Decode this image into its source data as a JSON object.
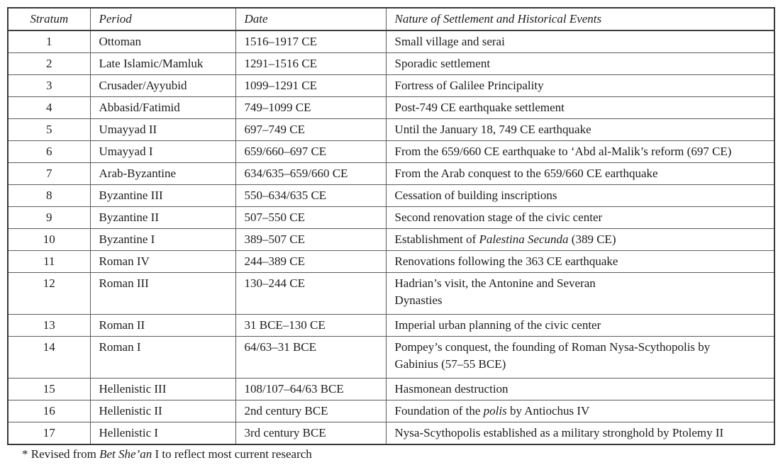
{
  "page": {
    "background": "#ffffff",
    "text_color": "#1c1c1c",
    "border_color": "#5c5c5c",
    "outer_border_color": "#383838"
  },
  "table": {
    "columns": [
      "Stratum",
      "Period",
      "Date",
      "Nature of Settlement and Historical Events"
    ],
    "rows": [
      {
        "stratum": "1",
        "period": "Ottoman",
        "date": "1516–1917 CE",
        "event": [
          [
            {
              "t": "Small village and serai"
            }
          ]
        ]
      },
      {
        "stratum": "2",
        "period": "Late Islamic/Mamluk",
        "date": "1291–1516 CE",
        "event": [
          [
            {
              "t": "Sporadic settlement"
            }
          ]
        ]
      },
      {
        "stratum": "3",
        "period": "Crusader/Ayyubid",
        "date": "1099–1291 CE",
        "event": [
          [
            {
              "t": "Fortress of Galilee Principality"
            }
          ]
        ]
      },
      {
        "stratum": "4",
        "period": "Abbasid/Fatimid",
        "date": "749–1099 CE",
        "event": [
          [
            {
              "t": "Post-749 CE earthquake settlement"
            }
          ]
        ]
      },
      {
        "stratum": "5",
        "period": "Umayyad II",
        "date": "697–749 CE",
        "event": [
          [
            {
              "t": "Until the January 18, 749 CE earthquake"
            }
          ]
        ]
      },
      {
        "stratum": "6",
        "period": "Umayyad I",
        "date": "659/660–697 CE",
        "event": [
          [
            {
              "t": "From the 659/660 CE earthquake to ‘Abd al-Malik’s reform (697 CE)"
            }
          ]
        ]
      },
      {
        "stratum": "7",
        "period": "Arab-Byzantine",
        "date": "634/635–659/660 CE",
        "event": [
          [
            {
              "t": "From the Arab conquest to the 659/660 CE earthquake"
            }
          ]
        ]
      },
      {
        "stratum": "8",
        "period": "Byzantine III",
        "date": "550–634/635 CE",
        "event": [
          [
            {
              "t": "Cessation of building inscriptions"
            }
          ]
        ]
      },
      {
        "stratum": "9",
        "period": "Byzantine II",
        "date": "507–550 CE",
        "event": [
          [
            {
              "t": "Second renovation stage of the civic center"
            }
          ]
        ]
      },
      {
        "stratum": "10",
        "period": "Byzantine I",
        "date": "389–507 CE",
        "event": [
          [
            {
              "t": "Establishment of "
            },
            {
              "t": "Palestina Secunda",
              "i": true
            },
            {
              "t": " (389 CE)"
            }
          ]
        ]
      },
      {
        "stratum": "11",
        "period": "Roman IV",
        "date": "244–389 CE",
        "event": [
          [
            {
              "t": "Renovations following the 363 CE earthquake"
            }
          ]
        ]
      },
      {
        "stratum": "12",
        "period": "Roman III",
        "date": "130–244 CE",
        "tall": true,
        "event": [
          [
            {
              "t": "Hadrian’s visit, the Antonine and Severan"
            }
          ],
          [
            {
              "t": "Dynasties"
            }
          ]
        ]
      },
      {
        "stratum": "13",
        "period": "Roman II",
        "date": "31 BCE–130 CE",
        "event": [
          [
            {
              "t": "Imperial urban planning of the civic center"
            }
          ]
        ]
      },
      {
        "stratum": "14",
        "period": "Roman I",
        "date": "64/63–31 BCE",
        "tall": true,
        "event": [
          [
            {
              "t": "Pompey’s conquest, the founding of Roman Nysa-Scythopolis by"
            }
          ],
          [
            {
              "t": "Gabinius (57–55 BCE)"
            }
          ]
        ]
      },
      {
        "stratum": "15",
        "period": "Hellenistic III",
        "date": "108/107–64/63 BCE",
        "event": [
          [
            {
              "t": "Hasmonean destruction"
            }
          ]
        ]
      },
      {
        "stratum": "16",
        "period": "Hellenistic II",
        "date": "2nd century BCE",
        "event": [
          [
            {
              "t": "Foundation of the "
            },
            {
              "t": "polis",
              "i": true
            },
            {
              "t": " by Antiochus IV"
            }
          ]
        ]
      },
      {
        "stratum": "17",
        "period": "Hellenistic I",
        "date": "3rd century BCE",
        "event": [
          [
            {
              "t": "Nysa-Scythopolis established as a military stronghold by Ptolemy II"
            }
          ]
        ]
      }
    ]
  },
  "footnote": {
    "segments": [
      {
        "t": "* Revised from "
      },
      {
        "t": "Bet She’an",
        "i": true
      },
      {
        "t": " I to reflect most current research"
      }
    ]
  }
}
